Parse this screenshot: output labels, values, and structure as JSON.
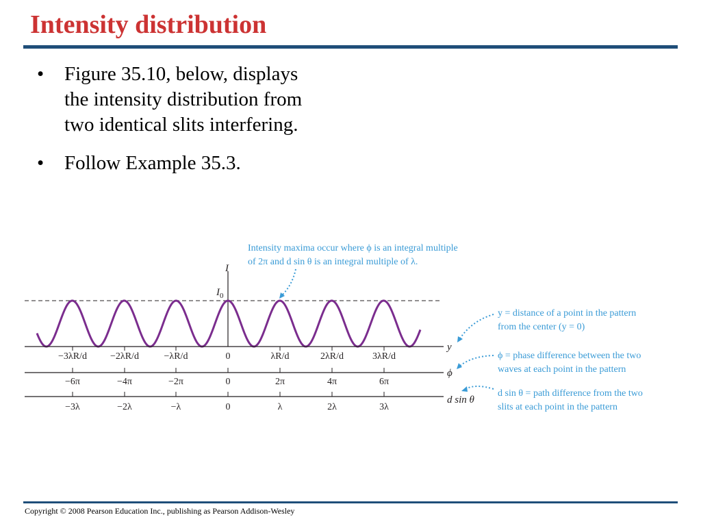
{
  "colors": {
    "title": "#cc3333",
    "rule": "#1f4e79",
    "curve": "#7b2d8e",
    "annotation": "#3a9bd6",
    "ink": "#231f20"
  },
  "title": "Intensity distribution",
  "bullets": [
    {
      "marker": "•",
      "lines": [
        "Figure 35.10, below, displays",
        "the intensity distribution from",
        "two identical slits interfering."
      ]
    },
    {
      "marker": "•",
      "lines": [
        "Follow Example 35.3."
      ]
    }
  ],
  "figure": {
    "intensity_axis_label": "I",
    "peak_label": "I",
    "peak_label_sub": "0",
    "rows": [
      {
        "name": "y",
        "label": "y",
        "ticks": [
          "−3λR/d",
          "−2λR/d",
          "−λR/d",
          "0",
          "λR/d",
          "2λR/d",
          "3λR/d"
        ]
      },
      {
        "name": "phi",
        "label": "ϕ",
        "ticks": [
          "−6π",
          "−4π",
          "−2π",
          "0",
          "2π",
          "4π",
          "6π"
        ]
      },
      {
        "name": "path",
        "label": "d sin θ",
        "ticks": [
          "−3λ",
          "−2λ",
          "−λ",
          "0",
          "λ",
          "2λ",
          "3λ"
        ]
      }
    ],
    "top_note": [
      "Intensity maxima occur where ϕ is an integral multiple",
      "of 2π and d sin θ is an integral multiple of λ."
    ],
    "side_notes": [
      {
        "name": "y",
        "lines": [
          "y = distance of a point in the pattern",
          "from the center (y = 0)"
        ]
      },
      {
        "name": "phi",
        "lines": [
          "ϕ = phase difference between the two",
          "waves at each point in the pattern"
        ]
      },
      {
        "name": "path",
        "lines": [
          "d sin θ = path difference from the two",
          "slits at each point in the pattern"
        ]
      }
    ]
  },
  "copyright": "Copyright © 2008 Pearson Education Inc., publishing as Pearson Addison-Wesley"
}
